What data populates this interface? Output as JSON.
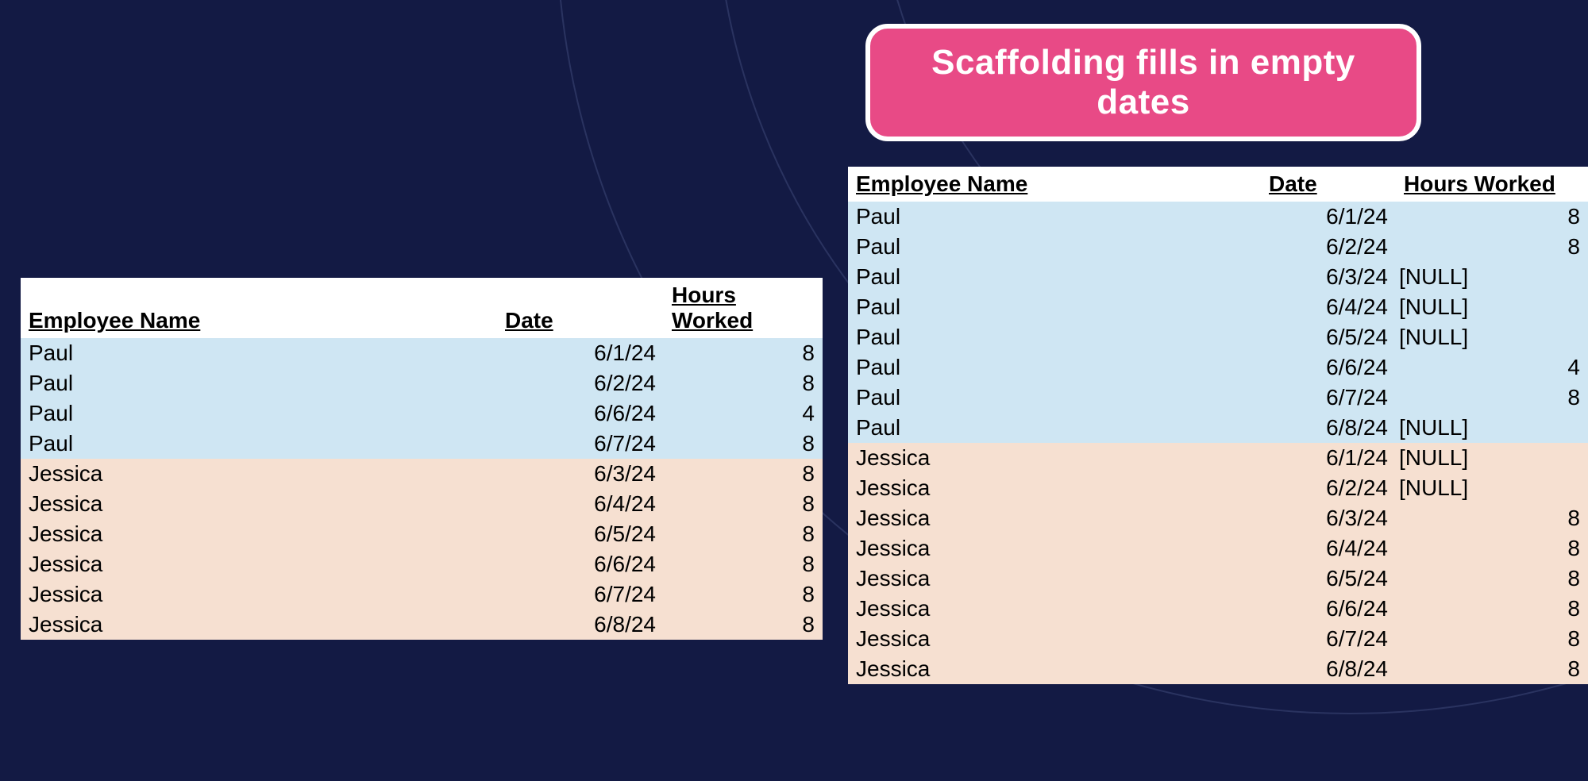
{
  "colors": {
    "background": "#131a44",
    "callout_bg": "#e84a86",
    "callout_border": "#ffffff",
    "callout_text": "#ffffff",
    "header_bg": "#ffffff",
    "row_group_a": "#cfe6f3",
    "row_group_b": "#f6e0d1",
    "text": "#000000"
  },
  "callout": {
    "text": "Scaffolding fills in empty dates",
    "fontsize": 44,
    "border_radius": 28
  },
  "headers": {
    "name": "Employee Name",
    "date": "Date",
    "hours": "Hours Worked"
  },
  "null_label": "[NULL]",
  "left_table": {
    "header_fontsize": 28,
    "rows": [
      {
        "name": "Paul",
        "date": "6/1/24",
        "hours": "8",
        "group": "a"
      },
      {
        "name": "Paul",
        "date": "6/2/24",
        "hours": "8",
        "group": "a"
      },
      {
        "name": "Paul",
        "date": "6/6/24",
        "hours": "4",
        "group": "a"
      },
      {
        "name": "Paul",
        "date": "6/7/24",
        "hours": "8",
        "group": "a"
      },
      {
        "name": "Jessica",
        "date": "6/3/24",
        "hours": "8",
        "group": "b"
      },
      {
        "name": "Jessica",
        "date": "6/4/24",
        "hours": "8",
        "group": "b"
      },
      {
        "name": "Jessica",
        "date": "6/5/24",
        "hours": "8",
        "group": "b"
      },
      {
        "name": "Jessica",
        "date": "6/6/24",
        "hours": "8",
        "group": "b"
      },
      {
        "name": "Jessica",
        "date": "6/7/24",
        "hours": "8",
        "group": "b"
      },
      {
        "name": "Jessica",
        "date": "6/8/24",
        "hours": "8",
        "group": "b"
      }
    ]
  },
  "right_table": {
    "header_fontsize": 28,
    "rows": [
      {
        "name": "Paul",
        "date": "6/1/24",
        "hours": "8",
        "is_null": false,
        "group": "a"
      },
      {
        "name": "Paul",
        "date": "6/2/24",
        "hours": "8",
        "is_null": false,
        "group": "a"
      },
      {
        "name": "Paul",
        "date": "6/3/24",
        "hours": null,
        "is_null": true,
        "group": "a"
      },
      {
        "name": "Paul",
        "date": "6/4/24",
        "hours": null,
        "is_null": true,
        "group": "a"
      },
      {
        "name": "Paul",
        "date": "6/5/24",
        "hours": null,
        "is_null": true,
        "group": "a"
      },
      {
        "name": "Paul",
        "date": "6/6/24",
        "hours": "4",
        "is_null": false,
        "group": "a"
      },
      {
        "name": "Paul",
        "date": "6/7/24",
        "hours": "8",
        "is_null": false,
        "group": "a"
      },
      {
        "name": "Paul",
        "date": "6/8/24",
        "hours": null,
        "is_null": true,
        "group": "a"
      },
      {
        "name": "Jessica",
        "date": "6/1/24",
        "hours": null,
        "is_null": true,
        "group": "b"
      },
      {
        "name": "Jessica",
        "date": "6/2/24",
        "hours": null,
        "is_null": true,
        "group": "b"
      },
      {
        "name": "Jessica",
        "date": "6/3/24",
        "hours": "8",
        "is_null": false,
        "group": "b"
      },
      {
        "name": "Jessica",
        "date": "6/4/24",
        "hours": "8",
        "is_null": false,
        "group": "b"
      },
      {
        "name": "Jessica",
        "date": "6/5/24",
        "hours": "8",
        "is_null": false,
        "group": "b"
      },
      {
        "name": "Jessica",
        "date": "6/6/24",
        "hours": "8",
        "is_null": false,
        "group": "b"
      },
      {
        "name": "Jessica",
        "date": "6/7/24",
        "hours": "8",
        "is_null": false,
        "group": "b"
      },
      {
        "name": "Jessica",
        "date": "6/8/24",
        "hours": "8",
        "is_null": false,
        "group": "b"
      }
    ]
  }
}
